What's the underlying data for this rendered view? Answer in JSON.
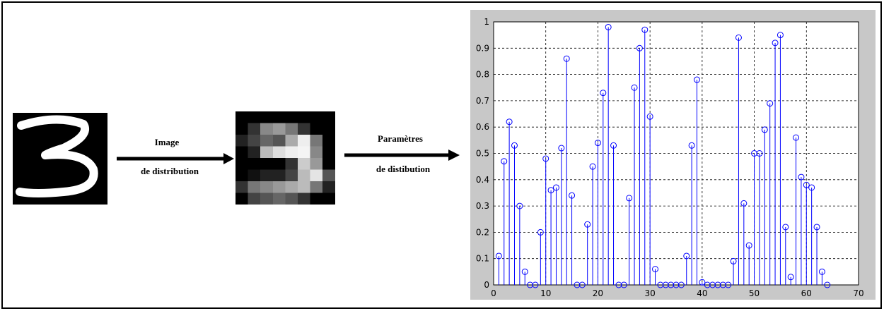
{
  "labels": {
    "arrow1_top": "Image",
    "arrow1_bottom": "de distribution",
    "arrow2_top": "Paramètres",
    "arrow2_bottom": "de distibution"
  },
  "chart_data": {
    "type": "stem",
    "color": "#0000ff",
    "grid": true,
    "x": [
      1,
      2,
      3,
      4,
      5,
      6,
      7,
      8,
      9,
      10,
      11,
      12,
      13,
      14,
      15,
      16,
      17,
      18,
      19,
      20,
      21,
      22,
      23,
      24,
      25,
      26,
      27,
      28,
      29,
      30,
      31,
      32,
      33,
      34,
      35,
      36,
      37,
      38,
      39,
      40,
      41,
      42,
      43,
      44,
      45,
      46,
      47,
      48,
      49,
      50,
      51,
      52,
      53,
      54,
      55,
      56,
      57,
      58,
      59,
      60,
      61,
      62,
      63,
      64
    ],
    "values": [
      0.11,
      0.47,
      0.62,
      0.53,
      0.3,
      0.05,
      0,
      0,
      0.2,
      0.48,
      0.36,
      0.37,
      0.52,
      0.86,
      0.34,
      0,
      0,
      0.23,
      0.45,
      0.54,
      0.73,
      0.98,
      0.53,
      0,
      0,
      0.33,
      0.75,
      0.9,
      0.97,
      0.64,
      0.06,
      0,
      0,
      0,
      0,
      0,
      0.11,
      0.53,
      0.78,
      0.01,
      0,
      0,
      0,
      0,
      0,
      0.09,
      0.94,
      0.31,
      0.15,
      0.5,
      0.5,
      0.59,
      0.69,
      0.92,
      0.95,
      0.22,
      0.03,
      0.56,
      0.41,
      0.38,
      0.37,
      0.22,
      0.05,
      0
    ],
    "xlim": [
      0,
      70
    ],
    "xticks": [
      0,
      10,
      20,
      30,
      40,
      50,
      60,
      70
    ],
    "ylim": [
      0,
      1
    ],
    "yticks": [
      0,
      0.1,
      0.2,
      0.3,
      0.4,
      0.5,
      0.6,
      0.7,
      0.8,
      0.9,
      1
    ]
  }
}
